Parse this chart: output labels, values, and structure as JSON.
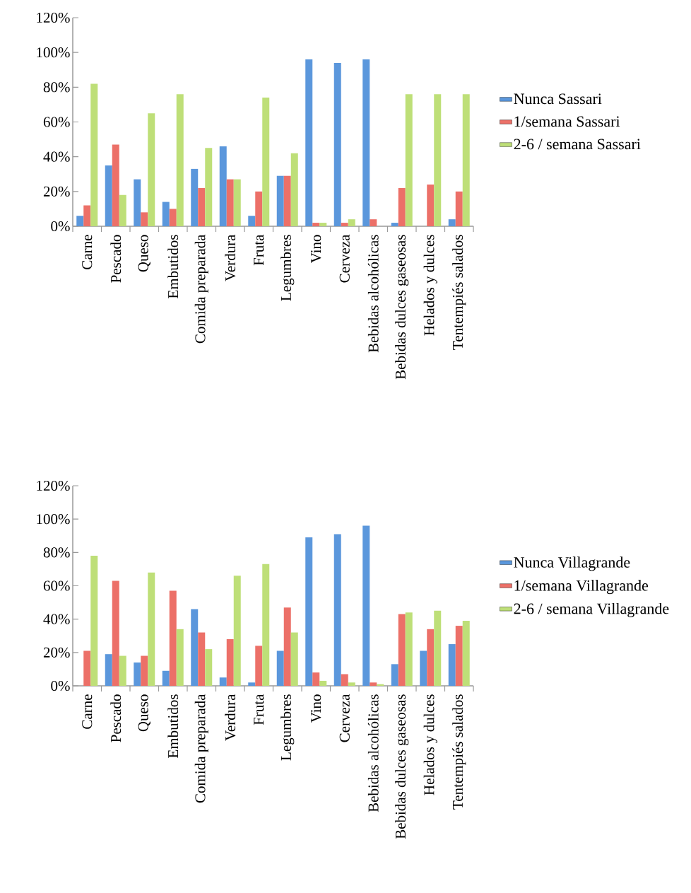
{
  "chart_data": [
    {
      "type": "bar",
      "categories": [
        "Carne",
        "Pescado",
        "Queso",
        "Embutidos",
        "Comida preparada",
        "Verdura",
        "Fruta",
        "Legumbres",
        "Vino",
        "Cerveza",
        "Bebidas alcohólicas",
        "Bebidas dulces gaseosas",
        "Helados y dulces",
        "Tentempiés salados"
      ],
      "series": [
        {
          "name": "Nunca Sassari",
          "color": "#5b97dc",
          "values": [
            6,
            35,
            27,
            14,
            33,
            46,
            6,
            29,
            96,
            94,
            96,
            2,
            0,
            4
          ]
        },
        {
          "name": "1/semana Sassari",
          "color": "#ec7068",
          "values": [
            12,
            47,
            8,
            10,
            22,
            27,
            20,
            29,
            2,
            2,
            4,
            22,
            24,
            20
          ]
        },
        {
          "name": "2-6 / semana Sassari",
          "color": "#bedf78",
          "values": [
            82,
            18,
            65,
            76,
            45,
            27,
            74,
            42,
            2,
            4,
            0,
            76,
            76,
            76
          ]
        }
      ],
      "ylim": [
        0,
        120
      ],
      "yticks": [
        {
          "value": 0,
          "label": "0%"
        },
        {
          "value": 20,
          "label": "20%"
        },
        {
          "value": 40,
          "label": "40%"
        },
        {
          "value": 60,
          "label": "60%"
        },
        {
          "value": 80,
          "label": "80%"
        },
        {
          "value": 100,
          "label": "100%"
        },
        {
          "value": 120,
          "label": "120%"
        }
      ],
      "legend": "right"
    },
    {
      "type": "bar",
      "categories": [
        "Carne",
        "Pescado",
        "Queso",
        "Embutidos",
        "Comida preparada",
        "Verdura",
        "Fruta",
        "Legumbres",
        "Vino",
        "Cerveza",
        "Bebidas alcohólicas",
        "Bebidas dulces gaseosas",
        "Helados y dulces",
        "Tentempiés salados"
      ],
      "series": [
        {
          "name": "Nunca  Villagrande",
          "color": "#5b97dc",
          "values": [
            0,
            19,
            14,
            9,
            46,
            5,
            2,
            21,
            89,
            91,
            96,
            13,
            21,
            25
          ]
        },
        {
          "name": "1/semana Villagrande",
          "color": "#ec7068",
          "values": [
            21,
            63,
            18,
            57,
            32,
            28,
            24,
            47,
            8,
            7,
            2,
            43,
            34,
            36
          ]
        },
        {
          "name": "2-6 / semana Villagrande",
          "color": "#bedf78",
          "values": [
            78,
            18,
            68,
            34,
            22,
            66,
            73,
            32,
            3,
            2,
            1,
            44,
            45,
            39
          ]
        }
      ],
      "ylim": [
        0,
        120
      ],
      "yticks": [
        {
          "value": 0,
          "label": "0%"
        },
        {
          "value": 20,
          "label": "20%"
        },
        {
          "value": 40,
          "label": "40%"
        },
        {
          "value": 60,
          "label": "60%"
        },
        {
          "value": 80,
          "label": "80%"
        },
        {
          "value": 100,
          "label": "100%"
        },
        {
          "value": 120,
          "label": "120%"
        }
      ],
      "legend": "right"
    }
  ]
}
